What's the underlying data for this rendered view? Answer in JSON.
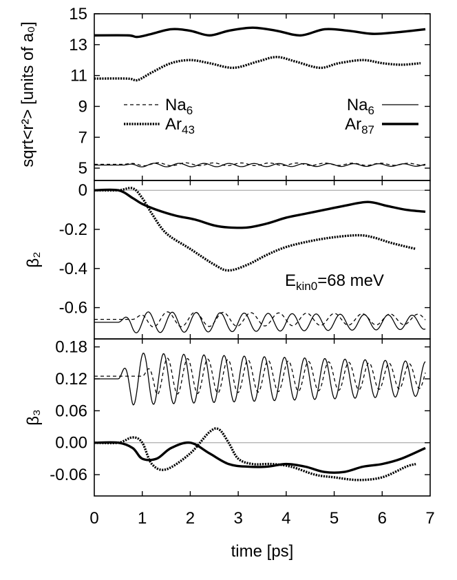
{
  "chart_data": {
    "type": "line",
    "xlabel": "time [ps]",
    "xlim": [
      0,
      7
    ],
    "xticks": [
      "0",
      "1",
      "2",
      "3",
      "4",
      "5",
      "6",
      "7"
    ],
    "panels": [
      {
        "id": "radius",
        "ylabel": "sqrt<r²> [units of a₀]",
        "ylim": [
          4.2,
          15
        ],
        "yticks": [
          {
            "v": 5,
            "t": "5"
          },
          {
            "v": 7,
            "t": "7"
          },
          {
            "v": 9,
            "t": "9"
          },
          {
            "v": 11,
            "t": "11"
          },
          {
            "v": 13,
            "t": "13"
          },
          {
            "v": 15,
            "t": "15"
          }
        ],
        "zero_line": false,
        "series": [
          {
            "name": "Ar87",
            "style": "thick",
            "x": [
              0,
              0.7,
              0.9,
              1.2,
              1.6,
              2.0,
              2.4,
              2.8,
              3.3,
              3.8,
              4.3,
              4.8,
              5.3,
              5.8,
              6.3,
              6.9
            ],
            "y": [
              13.6,
              13.6,
              13.5,
              13.7,
              14.0,
              13.9,
              13.6,
              13.9,
              14.1,
              13.9,
              13.6,
              14.0,
              13.9,
              13.7,
              13.8,
              14.0
            ]
          },
          {
            "name": "Ar43",
            "style": "dotted-thick",
            "x": [
              0,
              0.7,
              0.9,
              1.2,
              1.6,
              2.0,
              2.4,
              2.9,
              3.4,
              3.8,
              4.2,
              4.7,
              5.1,
              5.6,
              6.0,
              6.4,
              6.8
            ],
            "y": [
              10.8,
              10.8,
              10.7,
              11.2,
              11.8,
              12.0,
              11.8,
              11.5,
              11.9,
              12.2,
              11.9,
              11.5,
              11.8,
              12.0,
              11.8,
              11.7,
              11.8
            ]
          },
          {
            "name": "Na6 (in Ar87)",
            "style": "thin",
            "x0": 0,
            "x1": 6.9,
            "base": 5.2,
            "osc_start": 0.6,
            "amp": 0.12,
            "period": 0.52
          },
          {
            "name": "Na6 (in Ar43)",
            "style": "dashed",
            "x0": 0,
            "x1": 6.9,
            "base": 5.25,
            "osc_start": 0.6,
            "amp": 0.1,
            "period": 0.58
          }
        ],
        "legend_left": [
          {
            "label": "Na",
            "sub": "6",
            "style": "dashed"
          },
          {
            "label": "Ar",
            "sub": "43",
            "style": "dotted-thick"
          }
        ],
        "legend_right": [
          {
            "label": "Na",
            "sub": "6",
            "style": "thin"
          },
          {
            "label": "Ar",
            "sub": "87",
            "style": "thick"
          }
        ]
      },
      {
        "id": "beta2",
        "ylabel": "β₂",
        "ylim": [
          -0.76,
          0.05
        ],
        "yticks": [
          {
            "v": 0,
            "t": "0"
          },
          {
            "v": -0.2,
            "t": "-0.2"
          },
          {
            "v": -0.4,
            "t": "-0.4"
          },
          {
            "v": -0.6,
            "t": "-0.6"
          }
        ],
        "zero_line": true,
        "annotation": {
          "main": "E",
          "sub": "kin0",
          "rest": "=68 meV"
        },
        "series": [
          {
            "name": "Ar87",
            "style": "thick",
            "x": [
              0,
              0.5,
              0.8,
              1.0,
              1.3,
              1.7,
              2.1,
              2.5,
              2.8,
              3.2,
              3.6,
              4.0,
              4.4,
              4.8,
              5.2,
              5.7,
              6.1,
              6.5,
              6.9
            ],
            "y": [
              0.0,
              0.0,
              -0.04,
              -0.07,
              -0.1,
              -0.13,
              -0.15,
              -0.18,
              -0.19,
              -0.19,
              -0.17,
              -0.14,
              -0.12,
              -0.1,
              -0.08,
              -0.06,
              -0.08,
              -0.1,
              -0.11
            ]
          },
          {
            "name": "Ar43",
            "style": "dotted-thick",
            "x": [
              0,
              0.5,
              0.8,
              1.0,
              1.2,
              1.5,
              2.0,
              2.5,
              2.8,
              3.2,
              3.6,
              4.0,
              4.5,
              5.0,
              5.5,
              5.8,
              6.2,
              6.7
            ],
            "y": [
              0.0,
              0.0,
              0.01,
              -0.04,
              -0.12,
              -0.22,
              -0.3,
              -0.38,
              -0.41,
              -0.38,
              -0.33,
              -0.29,
              -0.26,
              -0.24,
              -0.23,
              -0.24,
              -0.27,
              -0.3
            ]
          },
          {
            "name": "Na6 (in Ar87)",
            "style": "thin",
            "x0": 0,
            "x1": 6.9,
            "base": -0.675,
            "osc_start": 0.5,
            "amp": 0.055,
            "period": 0.5
          },
          {
            "name": "Na6 (in Ar43)",
            "style": "dashed",
            "x0": 0,
            "x1": 6.9,
            "base": -0.66,
            "osc_start": 0.8,
            "amp": 0.04,
            "period": 0.58
          }
        ]
      },
      {
        "id": "beta3",
        "ylabel": "β₃",
        "ylim": [
          -0.1,
          0.195
        ],
        "yticks": [
          {
            "v": 0.18,
            "t": "0.18"
          },
          {
            "v": 0.12,
            "t": "0.12"
          },
          {
            "v": 0.06,
            "t": "0.06"
          },
          {
            "v": 0.0,
            "t": "0.00"
          },
          {
            "v": -0.06,
            "t": "-0.06"
          }
        ],
        "zero_line": true,
        "series": [
          {
            "name": "Ar87",
            "style": "thick",
            "x": [
              0,
              0.5,
              0.8,
              1.0,
              1.3,
              1.6,
              2.0,
              2.4,
              2.8,
              3.2,
              3.6,
              4.0,
              4.4,
              4.8,
              5.2,
              5.6,
              6.0,
              6.4,
              6.9
            ],
            "y": [
              0.0,
              0.0,
              -0.01,
              -0.03,
              -0.03,
              -0.01,
              0.0,
              -0.02,
              -0.04,
              -0.045,
              -0.045,
              -0.04,
              -0.045,
              -0.055,
              -0.055,
              -0.045,
              -0.04,
              -0.03,
              -0.01
            ]
          },
          {
            "name": "Ar43",
            "style": "dotted-thick",
            "x": [
              0,
              0.5,
              0.8,
              1.0,
              1.2,
              1.5,
              2.0,
              2.4,
              2.6,
              2.8,
              3.0,
              3.3,
              3.7,
              4.1,
              4.6,
              5.0,
              5.5,
              6.0,
              6.5,
              6.7
            ],
            "y": [
              0.0,
              0.0,
              0.01,
              0.0,
              -0.04,
              -0.05,
              -0.02,
              0.02,
              0.025,
              0.0,
              -0.03,
              -0.04,
              -0.04,
              -0.045,
              -0.06,
              -0.065,
              -0.07,
              -0.065,
              -0.045,
              -0.04
            ]
          },
          {
            "name": "Na6 (in Ar87)",
            "style": "thin",
            "x0": 0,
            "x1": 6.9,
            "base": 0.12,
            "osc_start": 0.5,
            "amp": 0.05,
            "period": 0.42
          },
          {
            "name": "Na6 (in Ar43)",
            "style": "dashed",
            "x0": 0,
            "x1": 6.9,
            "base": 0.125,
            "osc_start": 1.0,
            "amp": 0.035,
            "period": 0.42
          }
        ]
      }
    ]
  }
}
